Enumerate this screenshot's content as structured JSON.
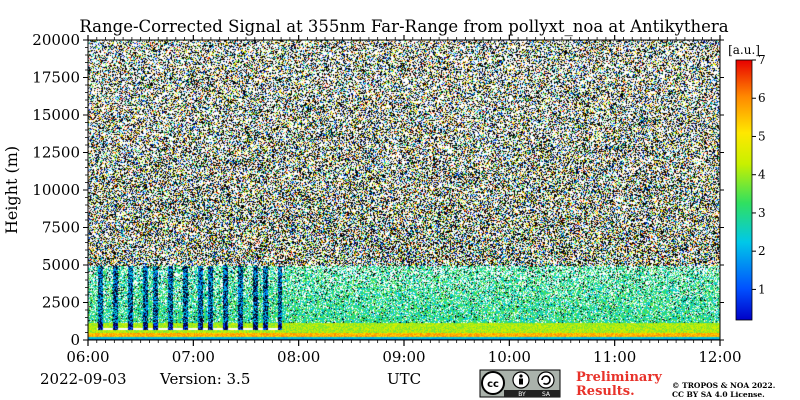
{
  "chart_data": {
    "type": "heatmap",
    "title": "Range-Corrected Signal at 355nm Far-Range from pollyxt_noa at Antikythera",
    "ylabel": "Height (m)",
    "xlabel": "UTC",
    "x_ticks": [
      "06:00",
      "07:00",
      "08:00",
      "09:00",
      "10:00",
      "11:00",
      "12:00"
    ],
    "xlim": [
      "06:00",
      "12:00"
    ],
    "y_ticks": [
      0,
      2500,
      5000,
      7500,
      10000,
      12500,
      15000,
      17500,
      20000
    ],
    "y_tick_labels": [
      "0",
      "2500",
      "5000",
      "7500",
      "10000",
      "12500",
      "15000",
      "17500",
      "20000"
    ],
    "ylim": [
      0,
      20000
    ],
    "colorbar": {
      "unit": "[a.u.]",
      "ticks": [
        1,
        2,
        3,
        4,
        5,
        6,
        7
      ],
      "tick_labels": [
        "1",
        "2",
        "3",
        "4",
        "5",
        "6",
        "7"
      ],
      "range": [
        0.2,
        7
      ],
      "colormap": "jet"
    },
    "features": {
      "boundary_layer_top_m": 1200,
      "surface_layer_m": 500,
      "cloud_period_utc": [
        "06:05",
        "07:50"
      ],
      "cloud_base_m": 700,
      "noisy_above_m": 5000
    }
  },
  "footer": {
    "date": "2022-09-03",
    "version": "Version: 3.5",
    "x_axis_label": "UTC",
    "license_badge": {
      "cc": "cc",
      "by": "BY",
      "sa": "SA"
    },
    "preliminary_line1": "Preliminary",
    "preliminary_line2": "Results.",
    "copyright_line1": "© TROPOS & NOA 2022.",
    "copyright_line2": "CC BY SA 4.0 License."
  },
  "colors": {
    "preliminary": "#e8322a",
    "badge_bg": "#aab2ab",
    "badge_dark": "#222222"
  }
}
